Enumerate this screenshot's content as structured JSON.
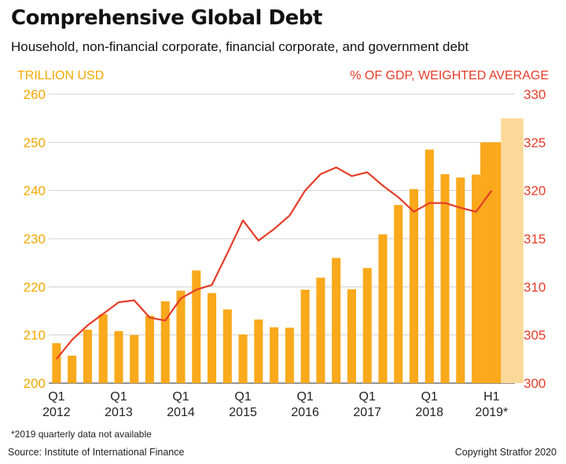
{
  "title": "Comprehensive Global Debt",
  "subtitle": "Household, non-financial corporate, financial corporate, and government debt",
  "footnote": "*2019 quarterly data not available",
  "source": "Source: Institute of International Finance",
  "copyright": "Copyright Stratfor 2020",
  "colors": {
    "bar": "#f9a91b",
    "bar_light": "#fdd999",
    "line": "#e63c28",
    "left_axis": "#f5a800",
    "right_axis": "#e63c28"
  },
  "chart_data": {
    "type": "bar",
    "y_left_label": "TRILLION USD",
    "y_right_label": "% OF GDP, WEIGHTED AVERAGE",
    "y_left_range": [
      200,
      260
    ],
    "y_left_ticks": [
      "200",
      "210",
      "220",
      "230",
      "240",
      "250",
      "260"
    ],
    "y_right_range": [
      300,
      330
    ],
    "y_right_ticks": [
      "300",
      "305",
      "310",
      "315",
      "320",
      "325",
      "330"
    ],
    "x_tick_labels": [
      {
        "line1": "Q1",
        "line2": "2012",
        "index": 0
      },
      {
        "line1": "Q1",
        "line2": "2013",
        "index": 4
      },
      {
        "line1": "Q1",
        "line2": "2014",
        "index": 8
      },
      {
        "line1": "Q1",
        "line2": "2015",
        "index": 12
      },
      {
        "line1": "Q1",
        "line2": "2016",
        "index": 16
      },
      {
        "line1": "Q1",
        "line2": "2017",
        "index": 20
      },
      {
        "line1": "Q1",
        "line2": "2018",
        "index": 24
      },
      {
        "line1": "H1",
        "line2": "2019*",
        "index": 28
      }
    ],
    "categories": [
      "Q1 2012",
      "Q2 2012",
      "Q3 2012",
      "Q4 2012",
      "Q1 2013",
      "Q2 2013",
      "Q3 2013",
      "Q4 2013",
      "Q1 2014",
      "Q2 2014",
      "Q3 2014",
      "Q4 2014",
      "Q1 2015",
      "Q2 2015",
      "Q3 2015",
      "Q4 2015",
      "Q1 2016",
      "Q2 2016",
      "Q3 2016",
      "Q4 2016",
      "Q1 2017",
      "Q2 2017",
      "Q3 2017",
      "Q4 2017",
      "Q1 2018",
      "Q2 2018",
      "Q3 2018",
      "Q4 2018",
      "H1 2019"
    ],
    "series": [
      {
        "axis": "left",
        "kind": "bar",
        "values": [
          208.3,
          205.7,
          211.1,
          214.3,
          210.8,
          210.0,
          214.0,
          217.0,
          219.2,
          223.4,
          218.7,
          215.3,
          210.1,
          213.2,
          211.6,
          211.5,
          219.4,
          221.9,
          226.0,
          219.5,
          223.9,
          230.9,
          237.0,
          240.3,
          248.5,
          243.4,
          242.7,
          243.3,
          250.0
        ]
      },
      {
        "axis": "right",
        "kind": "line",
        "values": [
          302.5,
          304.5,
          306.0,
          307.2,
          308.4,
          308.6,
          306.8,
          306.5,
          308.8,
          309.7,
          310.2,
          313.5,
          316.9,
          314.8,
          316.0,
          317.4,
          320.0,
          321.7,
          322.4,
          321.5,
          321.9,
          320.5,
          319.3,
          317.8,
          318.7,
          318.7,
          318.2,
          317.8,
          320.0
        ]
      }
    ],
    "projection_bar": {
      "axis": "left",
      "value": 255,
      "after_index": 28
    },
    "grid": true,
    "legend": "none"
  }
}
